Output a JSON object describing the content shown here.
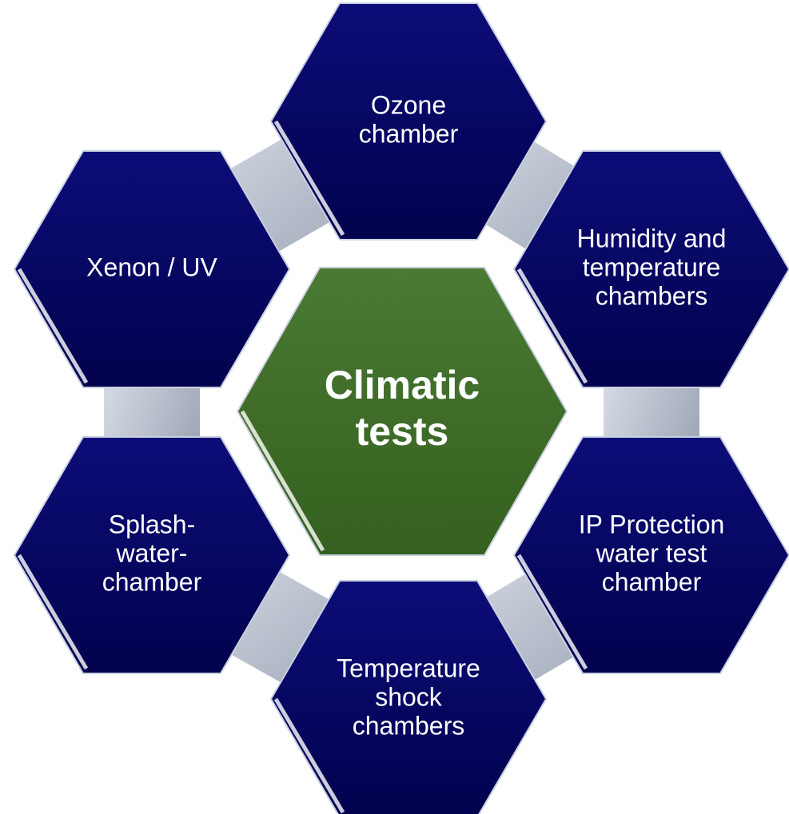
{
  "center": {
    "lines": [
      "Climatic",
      "tests"
    ]
  },
  "nodes": [
    {
      "lines": [
        "Ozone",
        "chamber"
      ]
    },
    {
      "lines": [
        "Humidity and",
        "temperature",
        "chambers"
      ]
    },
    {
      "lines": [
        "IP Protection",
        "water test",
        "chamber"
      ]
    },
    {
      "lines": [
        "Temperature",
        "shock",
        "chambers"
      ]
    },
    {
      "lines": [
        "Splash-",
        "water-",
        "chamber"
      ]
    },
    {
      "lines": [
        "Xenon / UV"
      ]
    }
  ]
}
